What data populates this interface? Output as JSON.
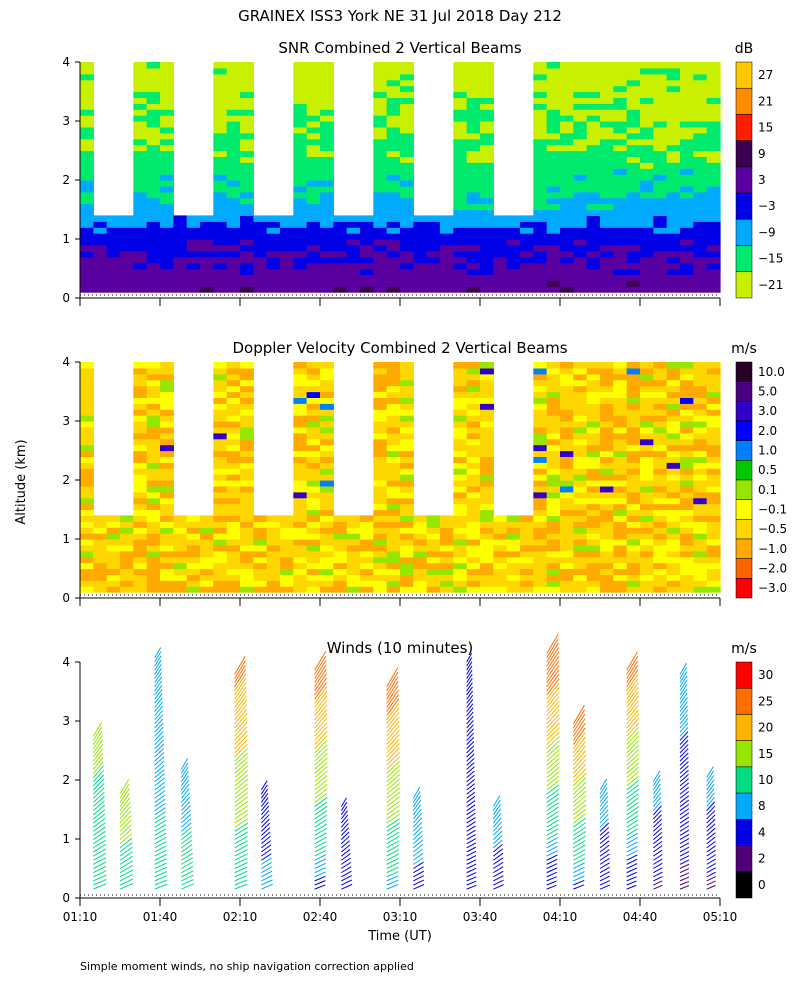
{
  "figure": {
    "title": "GRAINEX ISS3 York NE  31 Jul 2018 Day 212",
    "ylabel": "Altitude (km)",
    "xlabel": "Time (UT)",
    "footnote": "Simple moment winds, no ship navigation correction applied"
  },
  "chart_data": [
    {
      "type": "heatmap",
      "title": "SNR Combined 2 Vertical Beams",
      "xlabel": "Time (UT)",
      "ylabel": "Altitude (km)",
      "x_ticks": [
        "01:10",
        "01:40",
        "02:10",
        "02:40",
        "03:10",
        "03:40",
        "04:10",
        "04:40",
        "05:10"
      ],
      "x_range": [
        "01:10",
        "05:10"
      ],
      "y_ticks": [
        0,
        1,
        2,
        3,
        4
      ],
      "ylim": [
        0,
        4
      ],
      "colorbar": {
        "unit": "dB",
        "tick_labels": [
          "27",
          "21",
          "15",
          "9",
          "3",
          "−3",
          "−9",
          "−15",
          "−21"
        ],
        "colors": [
          "#ffc800",
          "#ff8c00",
          "#ff1e00",
          "#3c0050",
          "#5a00a0",
          "#0000e6",
          "#00aaff",
          "#00ea6e",
          "#c8f000"
        ]
      },
      "data_coverage": [
        {
          "x_start": "01:10",
          "x_end": "05:10",
          "alt_top": 1.45
        },
        {
          "x_start": "01:10",
          "x_end": "01:15",
          "alt_top": 4.0
        },
        {
          "x_start": "01:28",
          "x_end": "01:45",
          "alt_top": 4.0
        },
        {
          "x_start": "01:58",
          "x_end": "02:15",
          "alt_top": 4.0
        },
        {
          "x_start": "02:28",
          "x_end": "02:45",
          "alt_top": 4.0
        },
        {
          "x_start": "02:58",
          "x_end": "03:15",
          "alt_top": 4.0
        },
        {
          "x_start": "03:28",
          "x_end": "03:45",
          "alt_top": 4.0
        },
        {
          "x_start": "03:58",
          "x_end": "05:08",
          "alt_top": 4.0
        }
      ],
      "altitude_profile_db": [
        {
          "alt": 0.1,
          "snr": 4
        },
        {
          "alt": 0.4,
          "snr": 2
        },
        {
          "alt": 0.7,
          "snr": 0
        },
        {
          "alt": 1.0,
          "snr": -3
        },
        {
          "alt": 1.3,
          "snr": -8
        },
        {
          "alt": 1.8,
          "snr": -13
        },
        {
          "alt": 2.5,
          "snr": -17
        },
        {
          "alt": 3.5,
          "snr": -20
        }
      ]
    },
    {
      "type": "heatmap",
      "title": "Doppler Velocity Combined 2 Vertical Beams",
      "xlabel": "Time (UT)",
      "ylabel": "Altitude (km)",
      "x_ticks": [
        "01:10",
        "01:40",
        "02:10",
        "02:40",
        "03:10",
        "03:40",
        "04:10",
        "04:40",
        "05:10"
      ],
      "x_range": [
        "01:10",
        "05:10"
      ],
      "y_ticks": [
        0,
        1,
        2,
        3,
        4
      ],
      "ylim": [
        0,
        4
      ],
      "colorbar": {
        "unit": "m/s",
        "tick_labels": [
          "10.0",
          "5.0",
          "3.0",
          "2.0",
          "1.0",
          "0.5",
          "0.1",
          "−0.1",
          "−0.5",
          "−1.0",
          "−2.0",
          "−3.0"
        ],
        "colors": [
          "#280028",
          "#4b0082",
          "#3200c8",
          "#0000ff",
          "#007fff",
          "#00c800",
          "#96e600",
          "#ffff00",
          "#ffd700",
          "#ffaa00",
          "#ff6400",
          "#ff0000"
        ]
      },
      "data_coverage": [
        {
          "x_start": "01:10",
          "x_end": "05:10",
          "alt_top": 1.45
        },
        {
          "x_start": "01:10",
          "x_end": "01:15",
          "alt_top": 4.0
        },
        {
          "x_start": "01:28",
          "x_end": "01:45",
          "alt_top": 4.0
        },
        {
          "x_start": "01:58",
          "x_end": "02:15",
          "alt_top": 4.0
        },
        {
          "x_start": "02:28",
          "x_end": "02:45",
          "alt_top": 4.0
        },
        {
          "x_start": "02:58",
          "x_end": "03:15",
          "alt_top": 4.0
        },
        {
          "x_start": "03:28",
          "x_end": "03:45",
          "alt_top": 4.0
        },
        {
          "x_start": "03:58",
          "x_end": "05:08",
          "alt_top": 4.0
        }
      ],
      "typical_velocity_ms": -0.3
    },
    {
      "type": "scatter",
      "title": "Winds (10 minutes)",
      "xlabel": "Time (UT)",
      "ylabel": "Altitude (km)",
      "x_ticks": [
        "01:10",
        "01:40",
        "02:10",
        "02:40",
        "03:10",
        "03:40",
        "04:10",
        "04:40",
        "05:10"
      ],
      "x_range": [
        "01:10",
        "05:10"
      ],
      "y_ticks": [
        0,
        1,
        2,
        3,
        4
      ],
      "ylim": [
        0,
        4
      ],
      "colorbar": {
        "unit": "m/s",
        "tick_labels": [
          "30",
          "25",
          "20",
          "15",
          "10",
          "8",
          "4",
          "2",
          "0"
        ],
        "colors": [
          "#ff0000",
          "#ff6e00",
          "#ffb400",
          "#96e600",
          "#00dc82",
          "#00aaff",
          "#0000e6",
          "#500078",
          "#000000"
        ]
      },
      "profiles": [
        {
          "time": "01:15",
          "top_km": 2.8,
          "speed_low": 12,
          "speed_high": 16
        },
        {
          "time": "01:25",
          "top_km": 1.8,
          "speed_low": 12,
          "speed_high": 18
        },
        {
          "time": "01:38",
          "top_km": 4.1,
          "speed_low": 11,
          "speed_high": 8
        },
        {
          "time": "01:48",
          "top_km": 2.2,
          "speed_low": 11,
          "speed_high": 9
        },
        {
          "time": "02:08",
          "top_km": 3.8,
          "speed_low": 10,
          "speed_high": 26
        },
        {
          "time": "02:18",
          "top_km": 1.9,
          "speed_low": 9,
          "speed_high": 6
        },
        {
          "time": "02:38",
          "top_km": 3.9,
          "speed_low": 6,
          "speed_high": 28
        },
        {
          "time": "02:48",
          "top_km": 1.6,
          "speed_low": 8,
          "speed_high": 4
        },
        {
          "time": "03:05",
          "top_km": 3.6,
          "speed_low": 8,
          "speed_high": 28
        },
        {
          "time": "03:15",
          "top_km": 1.7,
          "speed_low": 7,
          "speed_high": 10
        },
        {
          "time": "03:35",
          "top_km": 4.0,
          "speed_low": 5,
          "speed_high": 4
        },
        {
          "time": "03:45",
          "top_km": 1.6,
          "speed_low": 6,
          "speed_high": 10
        },
        {
          "time": "04:05",
          "top_km": 4.2,
          "speed_low": 4,
          "speed_high": 30
        },
        {
          "time": "04:15",
          "top_km": 3.0,
          "speed_low": 6,
          "speed_high": 28
        },
        {
          "time": "04:25",
          "top_km": 1.9,
          "speed_low": 5,
          "speed_high": 10
        },
        {
          "time": "04:35",
          "top_km": 3.9,
          "speed_low": 4,
          "speed_high": 27
        },
        {
          "time": "04:45",
          "top_km": 2.0,
          "speed_low": 3,
          "speed_high": 10
        },
        {
          "time": "04:55",
          "top_km": 3.8,
          "speed_low": 3,
          "speed_high": 10
        },
        {
          "time": "05:05",
          "top_km": 2.1,
          "speed_low": 3,
          "speed_high": 10
        }
      ]
    }
  ]
}
